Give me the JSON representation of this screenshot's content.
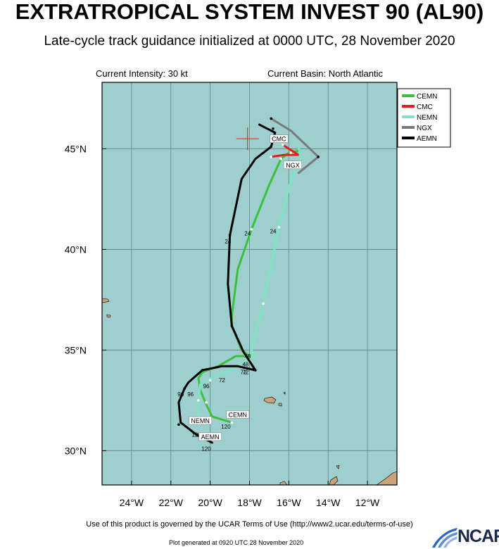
{
  "title": "EXTRATROPICAL SYSTEM INVEST 90 (AL90)",
  "subtitle": "Late-cycle track guidance initialized at 0000 UTC, 28 November 2020",
  "current_intensity": "Current Intensity: 30 kt",
  "current_basin": "Current Basin: North Atlantic",
  "footer": "Use of this product is governed by the UCAR Terms of Use (http://www2.ucar.edu/terms-of-use)",
  "generated": "Plot generated at 0920 UTC   28 November 2020",
  "logo_text": "NCAR",
  "map": {
    "ocean_color": "#9ccfcd",
    "land_color": "#caa27c",
    "grid_color": "#6f8a8a",
    "lon_range": [
      -25.5,
      -10.5
    ],
    "lat_range": [
      28.3,
      48.3
    ],
    "lon_ticks": [
      -24,
      -22,
      -20,
      -18,
      -16,
      -14,
      -12
    ],
    "lon_labels": [
      "24°W",
      "22°W",
      "20°W",
      "18°W",
      "16°W",
      "14°W",
      "12°W"
    ],
    "lat_ticks": [
      30,
      35,
      40,
      45
    ],
    "lat_labels": [
      "30°N",
      "35°N",
      "40°N",
      "45°N"
    ],
    "current_position": {
      "lon": -18.1,
      "lat": 45.5,
      "color": "#e53030"
    }
  },
  "legend": [
    {
      "name": "CEMN",
      "color": "#3cc040"
    },
    {
      "name": "CMC",
      "color": "#e81c1c"
    },
    {
      "name": "NEMN",
      "color": "#7de6c0"
    },
    {
      "name": "NGX",
      "color": "#7a7a7a"
    },
    {
      "name": "AEMN",
      "color": "#000000"
    }
  ],
  "chart_data": {
    "type": "scatter",
    "x_unit": "longitude (deg E)",
    "y_unit": "latitude (deg N)",
    "series": [
      {
        "name": "CEMN",
        "color": "#3cc040",
        "points": [
          [
            -15.5,
            44.9
          ],
          [
            -16.0,
            44.8
          ],
          [
            -16.4,
            44.5
          ],
          [
            -17.0,
            43.2
          ],
          [
            -17.9,
            41.0
          ],
          [
            -18.6,
            39.0
          ],
          [
            -18.9,
            36.7
          ],
          [
            -18.9,
            36.2
          ],
          [
            -18.4,
            35.0
          ],
          [
            -18.0,
            34.7
          ],
          [
            -18.7,
            34.7
          ],
          [
            -19.6,
            34.2
          ],
          [
            -20.4,
            33.9
          ],
          [
            -20.6,
            33.6
          ],
          [
            -20.5,
            33.0
          ],
          [
            -20.2,
            32.3
          ],
          [
            -19.9,
            31.7
          ],
          [
            -18.9,
            31.4
          ]
        ],
        "marker_points": [
          [
            -16.4,
            44.5
          ],
          [
            -17.9,
            41.0
          ],
          [
            -18.9,
            36.2
          ],
          [
            -18.2,
            34.7
          ],
          [
            -20.2,
            32.4
          ],
          [
            -18.9,
            31.4
          ]
        ],
        "end_label": "CEMN"
      },
      {
        "name": "CMC",
        "color": "#e81c1c",
        "points": [
          [
            -16.3,
            45.2
          ],
          [
            -16.0,
            45.0
          ],
          [
            -15.5,
            44.7
          ],
          [
            -16.2,
            44.7
          ],
          [
            -16.9,
            44.6
          ]
        ],
        "marker_points": [
          [
            -16.3,
            45.2
          ],
          [
            -16.9,
            44.6
          ]
        ],
        "end_label": "CMC"
      },
      {
        "name": "NEMN",
        "color": "#7de6c0",
        "points": [
          [
            -15.5,
            45.1
          ],
          [
            -15.4,
            44.5
          ],
          [
            -15.9,
            43.4
          ],
          [
            -16.5,
            41.1
          ],
          [
            -17.3,
            37.3
          ],
          [
            -17.9,
            35.0
          ],
          [
            -17.7,
            34.7
          ],
          [
            -18.3,
            34.4
          ],
          [
            -19.0,
            34.0
          ],
          [
            -20.0,
            33.6
          ],
          [
            -20.5,
            33.3
          ],
          [
            -20.6,
            32.5
          ],
          [
            -20.6,
            31.3
          ]
        ],
        "marker_points": [
          [
            -15.9,
            44.8
          ],
          [
            -16.5,
            41.1
          ],
          [
            -17.3,
            37.3
          ],
          [
            -18.0,
            34.4
          ],
          [
            -20.0,
            33.5
          ],
          [
            -20.6,
            32.5
          ]
        ],
        "end_label": "NEMN"
      },
      {
        "name": "NGX",
        "color": "#7a7a7a",
        "points": [
          [
            -16.9,
            46.5
          ],
          [
            -15.9,
            45.9
          ],
          [
            -14.5,
            44.6
          ],
          [
            -15.5,
            43.8
          ]
        ],
        "marker_points": [
          [
            -16.9,
            46.5
          ],
          [
            -14.5,
            44.6
          ]
        ],
        "end_label": "NGX"
      },
      {
        "name": "AEMN",
        "color": "#000000",
        "points": [
          [
            -17.5,
            46.2
          ],
          [
            -16.7,
            45.8
          ],
          [
            -16.9,
            45.1
          ],
          [
            -17.7,
            44.5
          ],
          [
            -18.4,
            43.5
          ],
          [
            -19.0,
            40.7
          ],
          [
            -19.1,
            38.3
          ],
          [
            -18.9,
            36.2
          ],
          [
            -18.3,
            34.9
          ],
          [
            -17.7,
            34.0
          ],
          [
            -18.6,
            34.2
          ],
          [
            -19.4,
            34.2
          ],
          [
            -20.4,
            34.0
          ],
          [
            -21.1,
            33.4
          ],
          [
            -21.3,
            33.1
          ],
          [
            -21.6,
            32.4
          ],
          [
            -21.5,
            31.4
          ],
          [
            -20.7,
            30.8
          ],
          [
            -19.9,
            30.4
          ]
        ],
        "marker_points": [
          [
            -16.8,
            46.0
          ],
          [
            -16.9,
            45.1
          ],
          [
            -19.0,
            40.7
          ],
          [
            -18.9,
            36.2
          ],
          [
            -17.7,
            34.0
          ],
          [
            -20.4,
            34.0
          ],
          [
            -21.3,
            33.1
          ],
          [
            -21.6,
            31.3
          ],
          [
            -20.5,
            30.7
          ]
        ],
        "end_label": "AEMN"
      }
    ],
    "hour_labels": [
      {
        "text": "24",
        "lon": -19.1,
        "lat": 40.3
      },
      {
        "text": "24",
        "lon": -18.1,
        "lat": 40.7
      },
      {
        "text": "24",
        "lon": -16.8,
        "lat": 40.8
      },
      {
        "text": "48",
        "lon": -18.1,
        "lat": 34.6
      },
      {
        "text": "48",
        "lon": -18.2,
        "lat": 34.2
      },
      {
        "text": "72",
        "lon": -18.3,
        "lat": 33.8
      },
      {
        "text": "72",
        "lon": -18.2,
        "lat": 33.8
      },
      {
        "text": "72",
        "lon": -19.4,
        "lat": 33.4
      },
      {
        "text": "96",
        "lon": -20.2,
        "lat": 33.1
      },
      {
        "text": "96",
        "lon": -21.0,
        "lat": 32.7
      },
      {
        "text": "96",
        "lon": -21.5,
        "lat": 32.7
      },
      {
        "text": "120",
        "lon": -20.7,
        "lat": 30.7
      },
      {
        "text": "120",
        "lon": -19.2,
        "lat": 31.1
      },
      {
        "text": "120",
        "lon": -20.2,
        "lat": 30.0
      }
    ],
    "track_labels": [
      {
        "text": "CMC",
        "lon": -16.5,
        "lat": 45.5
      },
      {
        "text": "NGX",
        "lon": -15.8,
        "lat": 44.2
      },
      {
        "text": "CEMN",
        "lon": -18.6,
        "lat": 31.8
      },
      {
        "text": "NEMN",
        "lon": -20.5,
        "lat": 31.5
      },
      {
        "text": "AEMN",
        "lon": -20.0,
        "lat": 30.7
      }
    ]
  }
}
